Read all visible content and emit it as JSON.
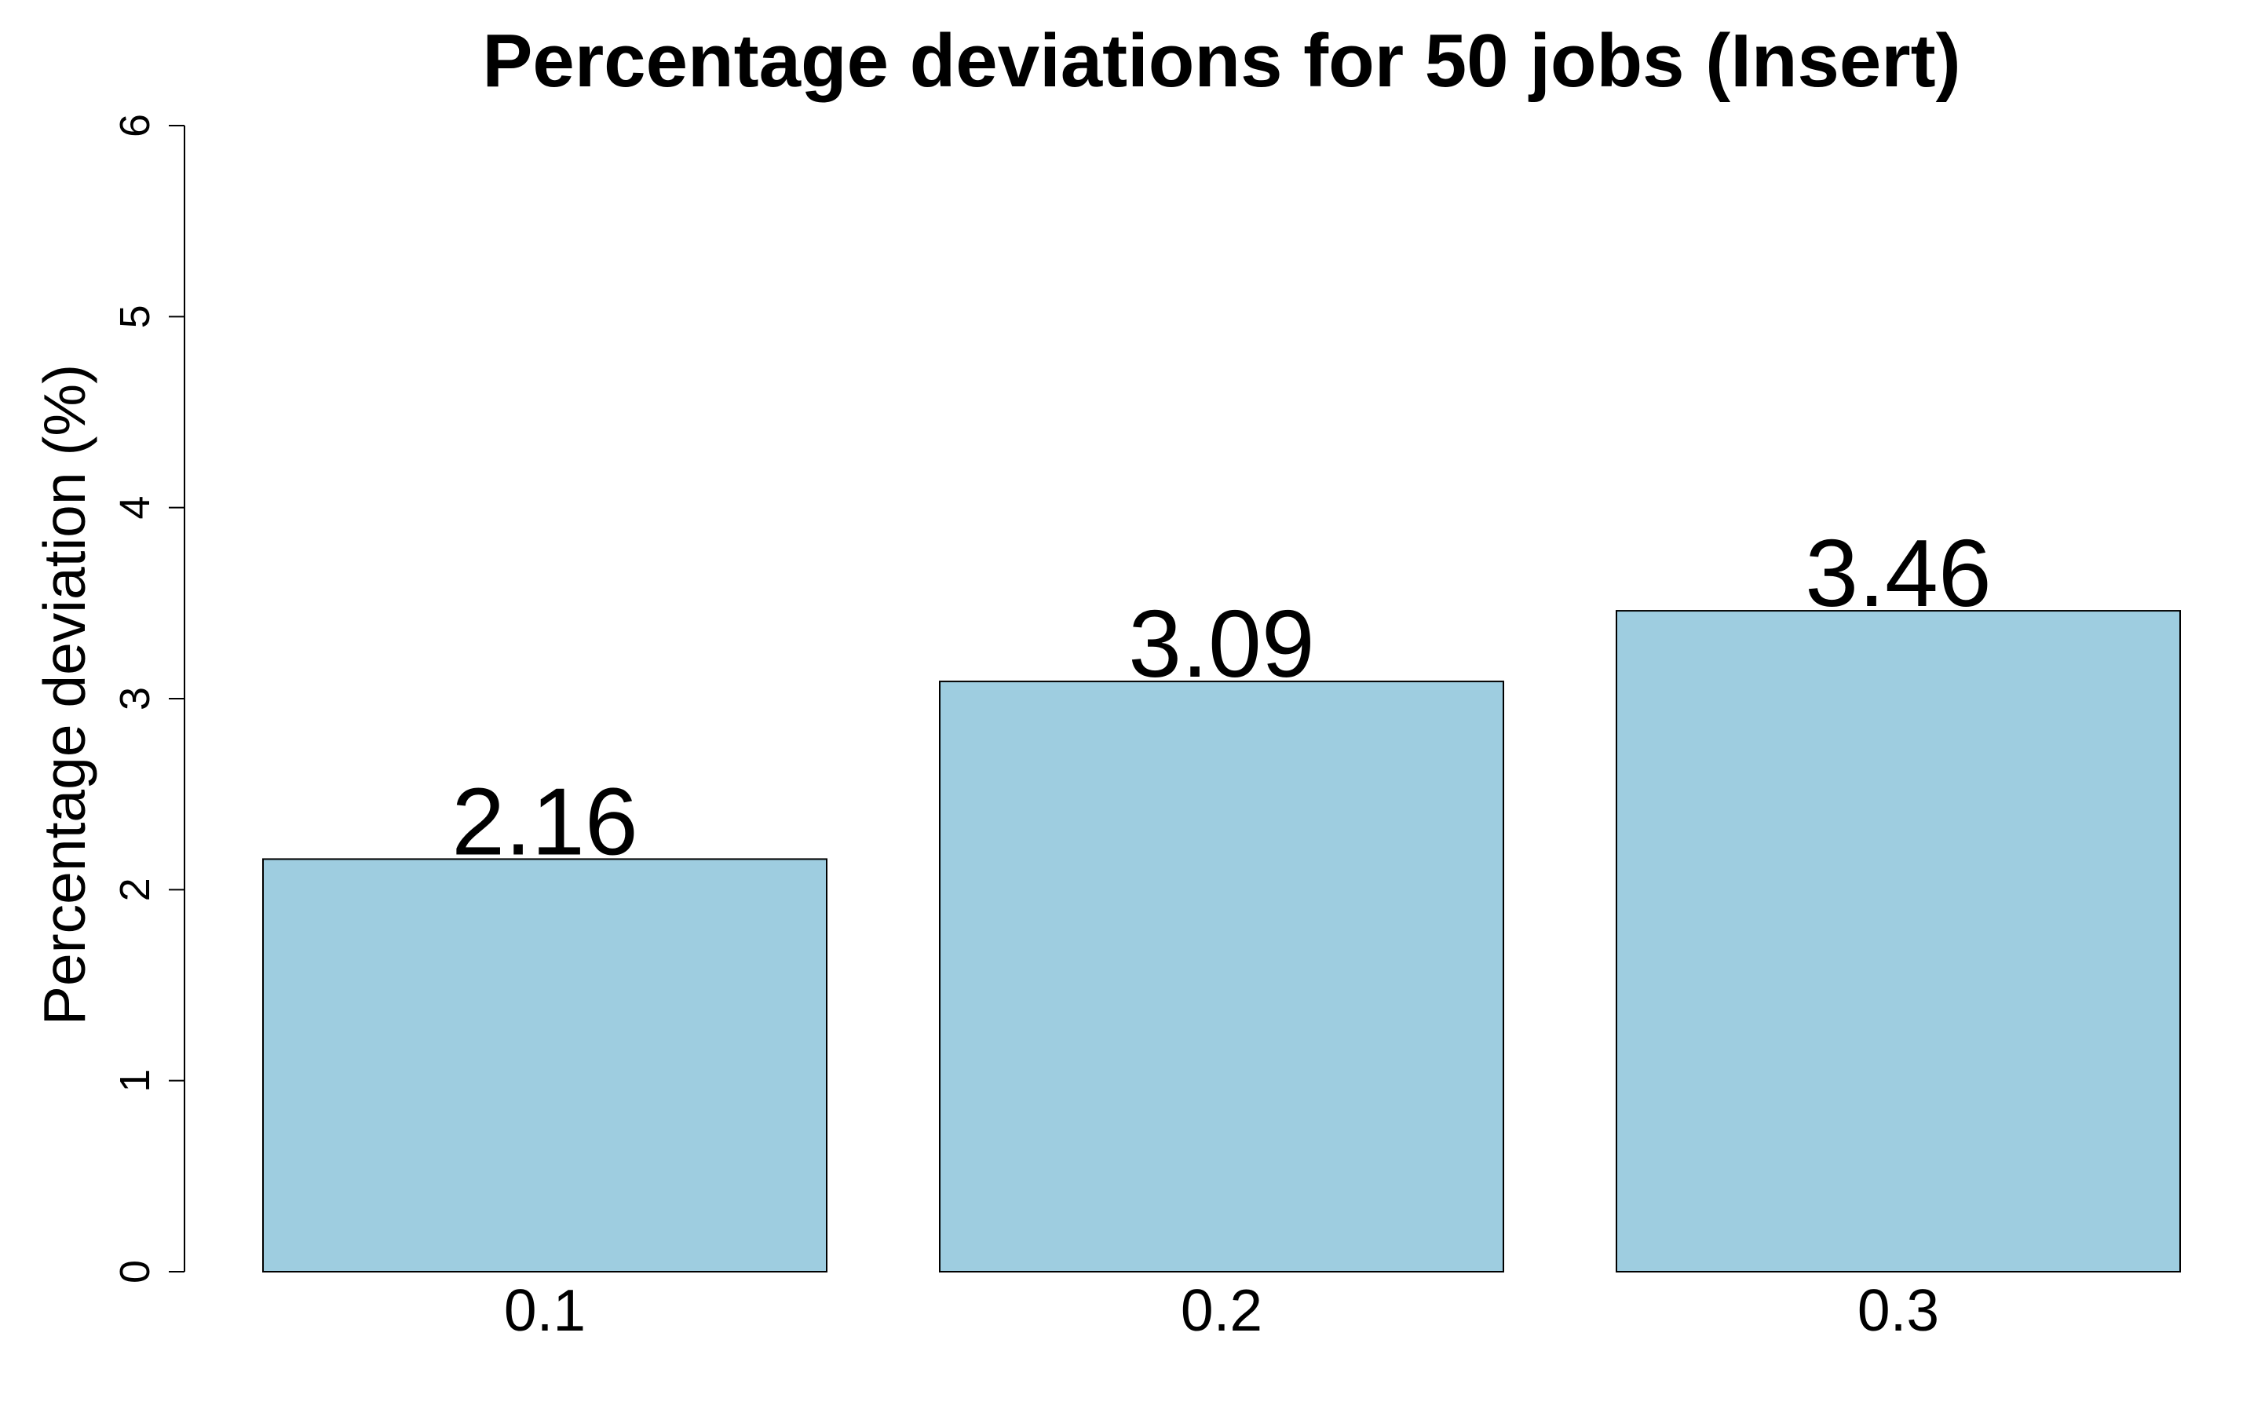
{
  "chart_data": {
    "type": "bar",
    "title": "Percentage deviations for 50 jobs (Insert)",
    "xlabel": "",
    "ylabel": "Percentage deviation (%)",
    "categories": [
      "0.1",
      "0.2",
      "0.3"
    ],
    "values": [
      2.16,
      3.09,
      3.46
    ],
    "value_labels": [
      "2.16",
      "3.09",
      "3.46"
    ],
    "ylim": [
      0,
      6
    ],
    "yticks": [
      0,
      1,
      2,
      3,
      4,
      5,
      6
    ],
    "ytick_labels": [
      "0",
      "1",
      "2",
      "3",
      "4",
      "5",
      "6"
    ],
    "grid": false,
    "legend": "none",
    "colors": {
      "bar_fill": "#9ECDE0",
      "bar_stroke": "#000000",
      "axis": "#000000",
      "text": "#000000",
      "background": "#FFFFFF"
    }
  }
}
